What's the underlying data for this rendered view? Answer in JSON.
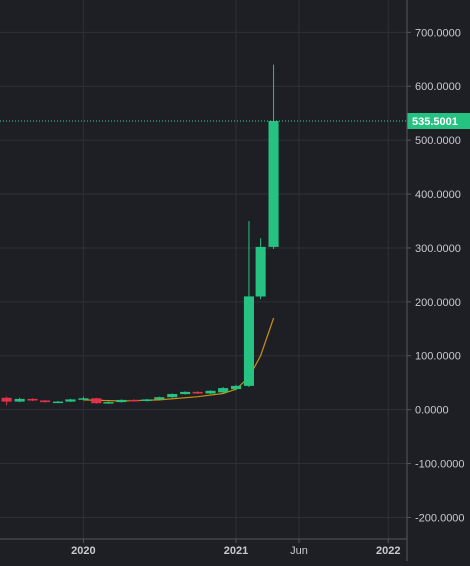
{
  "chart_data": {
    "type": "candlestick",
    "y_ticks": [
      "700.0000",
      "600.0000",
      "500.0000",
      "400.0000",
      "300.0000",
      "200.0000",
      "100.0000",
      "0.0000",
      "-100.0000",
      "-200.0000"
    ],
    "y_tick_values": [
      700,
      600,
      500,
      400,
      300,
      200,
      100,
      0,
      -100,
      -200
    ],
    "ylim": [
      -240,
      760
    ],
    "x_ticks": [
      "2020",
      "2021",
      "Jun",
      "2022"
    ],
    "x_tick_dates": [
      "2020-01-01",
      "2021-01-01",
      "2021-06-01",
      "2022-01-01"
    ],
    "xlim": [
      "2019-06-15",
      "2022-02-15"
    ],
    "grid": true,
    "price_label": "535.5001",
    "price_line_value": 535.5,
    "candles": [
      {
        "date": "2019-07-01",
        "open": 22,
        "high": 24,
        "low": 8,
        "close": 15
      },
      {
        "date": "2019-08-01",
        "open": 15,
        "high": 22,
        "low": 14,
        "close": 20
      },
      {
        "date": "2019-09-01",
        "open": 20,
        "high": 21,
        "low": 16,
        "close": 17
      },
      {
        "date": "2019-10-01",
        "open": 17,
        "high": 18,
        "low": 13,
        "close": 14
      },
      {
        "date": "2019-11-01",
        "open": 14,
        "high": 16,
        "low": 13,
        "close": 15
      },
      {
        "date": "2019-12-01",
        "open": 15,
        "high": 20,
        "low": 14,
        "close": 19
      },
      {
        "date": "2020-01-01",
        "open": 19,
        "high": 24,
        "low": 17,
        "close": 21
      },
      {
        "date": "2020-02-01",
        "open": 21,
        "high": 22,
        "low": 11,
        "close": 12
      },
      {
        "date": "2020-03-01",
        "open": 12,
        "high": 15,
        "low": 11,
        "close": 14
      },
      {
        "date": "2020-04-01",
        "open": 14,
        "high": 19,
        "low": 13,
        "close": 18
      },
      {
        "date": "2020-05-01",
        "open": 18,
        "high": 19,
        "low": 15,
        "close": 16
      },
      {
        "date": "2020-06-01",
        "open": 16,
        "high": 20,
        "low": 15,
        "close": 19
      },
      {
        "date": "2020-07-01",
        "open": 19,
        "high": 24,
        "low": 18,
        "close": 23
      },
      {
        "date": "2020-08-01",
        "open": 23,
        "high": 30,
        "low": 22,
        "close": 29
      },
      {
        "date": "2020-09-01",
        "open": 29,
        "high": 34,
        "low": 28,
        "close": 33
      },
      {
        "date": "2020-10-01",
        "open": 33,
        "high": 34,
        "low": 29,
        "close": 30
      },
      {
        "date": "2020-11-01",
        "open": 30,
        "high": 36,
        "low": 29,
        "close": 35
      },
      {
        "date": "2020-12-01",
        "open": 32,
        "high": 42,
        "low": 31,
        "close": 40
      },
      {
        "date": "2021-01-01",
        "open": 38,
        "high": 46,
        "low": 36,
        "close": 44
      },
      {
        "date": "2021-02-01",
        "open": 44,
        "high": 350,
        "low": 42,
        "close": 210
      },
      {
        "date": "2021-03-01",
        "open": 210,
        "high": 318,
        "low": 205,
        "close": 302
      },
      {
        "date": "2021-04-01",
        "open": 302,
        "high": 640,
        "low": 298,
        "close": 535.5
      }
    ],
    "moving_average": [
      {
        "date": "2020-01-01",
        "value": 18
      },
      {
        "date": "2020-04-01",
        "value": 16
      },
      {
        "date": "2020-07-01",
        "value": 18
      },
      {
        "date": "2020-10-01",
        "value": 24
      },
      {
        "date": "2020-12-01",
        "value": 30
      },
      {
        "date": "2021-01-01",
        "value": 38
      },
      {
        "date": "2021-02-01",
        "value": 60
      },
      {
        "date": "2021-03-01",
        "value": 100
      },
      {
        "date": "2021-04-01",
        "value": 170
      }
    ],
    "colors": {
      "background": "#1e1f24",
      "grid": "#2e3038",
      "up": "#26c281",
      "down": "#e0334a",
      "moving_average": "#c98f12",
      "price_line": "#36d49a",
      "axis_text": "#c8cad0",
      "axis_line": "#55575e"
    }
  }
}
